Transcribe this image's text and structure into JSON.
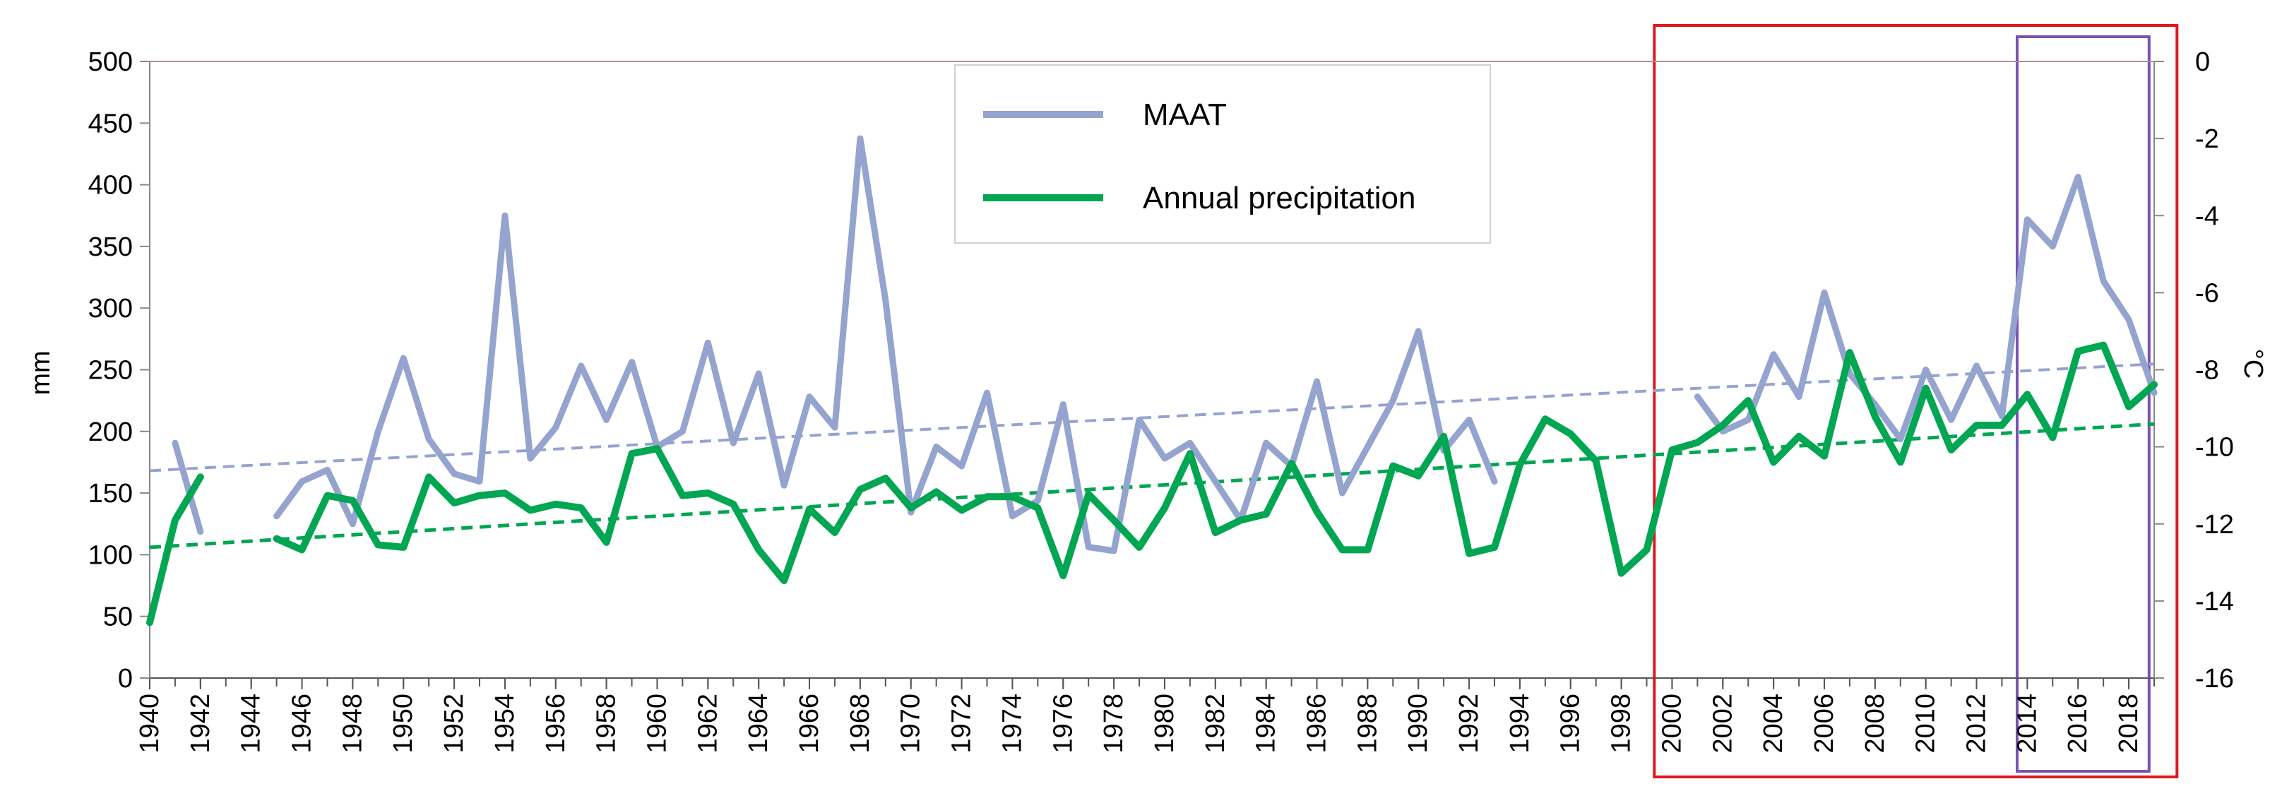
{
  "chart_data": {
    "type": "line",
    "title": "",
    "xlabel": "",
    "ylabel": "mm",
    "y2label": "°C",
    "xlim": [
      1940,
      2019
    ],
    "ylim": [
      0,
      500
    ],
    "y2lim": [
      -16,
      0
    ],
    "x_ticks": [
      1940,
      1942,
      1944,
      1946,
      1948,
      1950,
      1952,
      1954,
      1956,
      1958,
      1960,
      1962,
      1964,
      1966,
      1968,
      1970,
      1972,
      1974,
      1976,
      1978,
      1980,
      1982,
      1984,
      1986,
      1988,
      1990,
      1992,
      1994,
      1996,
      1998,
      2000,
      2002,
      2004,
      2006,
      2008,
      2010,
      2012,
      2014,
      2016,
      2018
    ],
    "y_ticks": [
      0,
      50,
      100,
      150,
      200,
      250,
      300,
      350,
      400,
      450,
      500
    ],
    "y2_ticks": [
      0,
      -2,
      -4,
      -6,
      -8,
      -10,
      -12,
      -14,
      -16
    ],
    "series": [
      {
        "name": "MAAT",
        "axis": "right",
        "color": "#95a3cf",
        "x": [
          1940,
          1941,
          1942,
          1943,
          1944,
          1945,
          1946,
          1947,
          1948,
          1949,
          1950,
          1951,
          1952,
          1953,
          1954,
          1955,
          1956,
          1957,
          1958,
          1959,
          1960,
          1961,
          1962,
          1963,
          1964,
          1965,
          1966,
          1967,
          1968,
          1969,
          1970,
          1971,
          1972,
          1973,
          1974,
          1975,
          1976,
          1977,
          1978,
          1979,
          1980,
          1981,
          1982,
          1983,
          1984,
          1985,
          1986,
          1987,
          1988,
          1989,
          1990,
          1991,
          1992,
          1993,
          1994,
          1995,
          1996,
          1997,
          1998,
          1999,
          2000,
          2001,
          2002,
          2003,
          2004,
          2005,
          2006,
          2007,
          2008,
          2009,
          2010,
          2011,
          2012,
          2013,
          2014,
          2015,
          2016,
          2017,
          2018,
          2019
        ],
        "values": [
          null,
          -9.9,
          -12.2,
          null,
          null,
          -11.8,
          -10.9,
          -10.6,
          -12.0,
          -9.6,
          -7.7,
          -9.8,
          -10.7,
          -10.9,
          -4.0,
          -10.3,
          -9.5,
          -7.9,
          -9.3,
          -7.8,
          -10.0,
          -9.6,
          -7.3,
          -9.9,
          -8.1,
          -11.0,
          -8.7,
          -9.5,
          -2.0,
          -6.2,
          -11.7,
          -10.0,
          -10.5,
          -8.6,
          -11.8,
          -11.4,
          -8.9,
          -12.6,
          -12.7,
          -9.3,
          -10.3,
          -9.9,
          -10.9,
          -11.9,
          -9.9,
          -10.5,
          -8.3,
          -11.2,
          -10.0,
          -8.8,
          -7.0,
          -10.1,
          -9.3,
          -10.9,
          null,
          null,
          null,
          null,
          null,
          null,
          null,
          -8.7,
          -9.6,
          -9.3,
          -7.6,
          -8.7,
          -6.0,
          -8.1,
          -8.9,
          -9.8,
          -8.0,
          -9.3,
          -7.9,
          -9.2,
          -4.1,
          -4.8,
          -3.0,
          -5.7,
          -6.7,
          -8.6
        ]
      },
      {
        "name": "Annual precipitation",
        "axis": "left",
        "color": "#00a651",
        "x": [
          1940,
          1941,
          1942,
          1943,
          1944,
          1945,
          1946,
          1947,
          1948,
          1949,
          1950,
          1951,
          1952,
          1953,
          1954,
          1955,
          1956,
          1957,
          1958,
          1959,
          1960,
          1961,
          1962,
          1963,
          1964,
          1965,
          1966,
          1967,
          1968,
          1969,
          1970,
          1971,
          1972,
          1973,
          1974,
          1975,
          1976,
          1977,
          1978,
          1979,
          1980,
          1981,
          1982,
          1983,
          1984,
          1985,
          1986,
          1987,
          1988,
          1989,
          1990,
          1991,
          1992,
          1993,
          1994,
          1995,
          1996,
          1997,
          1998,
          1999,
          2000,
          2001,
          2002,
          2003,
          2004,
          2005,
          2006,
          2007,
          2008,
          2009,
          2010,
          2011,
          2012,
          2013,
          2014,
          2015,
          2016,
          2017,
          2018,
          2019
        ],
        "values": [
          45,
          128,
          163,
          null,
          null,
          113,
          104,
          148,
          144,
          108,
          106,
          163,
          142,
          148,
          150,
          136,
          141,
          138,
          110,
          182,
          186,
          148,
          150,
          141,
          104,
          79,
          137,
          118,
          153,
          162,
          138,
          151,
          136,
          147,
          147,
          138,
          83,
          149,
          128,
          106,
          138,
          182,
          118,
          128,
          133,
          174,
          135,
          104,
          104,
          172,
          164,
          196,
          101,
          106,
          173,
          210,
          198,
          176,
          85,
          104,
          185,
          191,
          205,
          225,
          175,
          196,
          180,
          264,
          212,
          175,
          235,
          185,
          205,
          205,
          230,
          195,
          265,
          270,
          220,
          238
        ]
      }
    ],
    "trendlines": [
      {
        "name": "MAAT trend",
        "axis": "right",
        "color": "#95a3cf",
        "x": [
          1940,
          2019
        ],
        "values": [
          -10.62,
          -7.85
        ]
      },
      {
        "name": "Annual precipitation trend",
        "axis": "left",
        "color": "#00a651",
        "x": [
          1940,
          2019
        ],
        "values": [
          106,
          206
        ]
      }
    ],
    "highlight_boxes": [
      {
        "name": "red-box",
        "color": "#e0191f",
        "x_from": 1999.3,
        "x_to": 2019.9
      },
      {
        "name": "purple-box",
        "color": "#7952b3",
        "x_from": 2013.6,
        "x_to": 2018.8
      }
    ],
    "legend": {
      "position": "top-center",
      "entries": [
        "MAAT",
        "Annual precipitation"
      ]
    },
    "grid": false
  }
}
